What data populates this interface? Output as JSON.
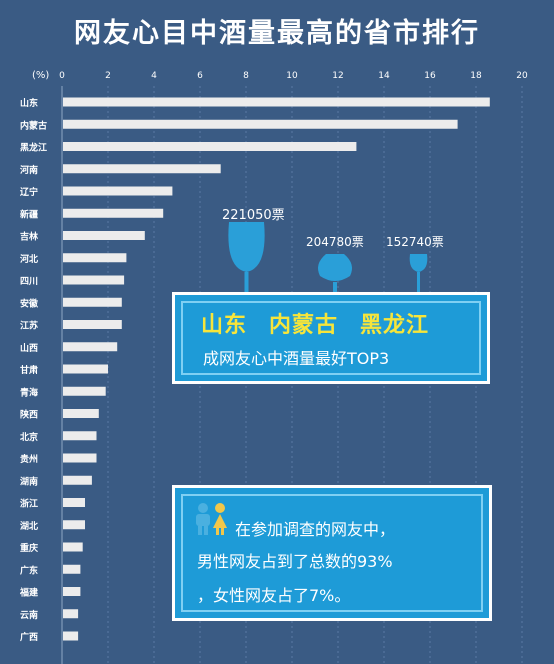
{
  "chart_data": {
    "type": "bar",
    "orientation": "horizontal",
    "title": "网友心目中酒量最高的省市排行",
    "unit_label": "(%)",
    "xlim": [
      0,
      20
    ],
    "ticks": [
      0,
      2,
      4,
      6,
      8,
      10,
      12,
      14,
      16,
      18,
      20
    ],
    "grid": true,
    "categories": [
      "山东",
      "内蒙古",
      "黑龙江",
      "河南",
      "辽宁",
      "新疆",
      "吉林",
      "河北",
      "四川",
      "安徽",
      "江苏",
      "山西",
      "甘肃",
      "青海",
      "陕西",
      "北京",
      "贵州",
      "湖南",
      "浙江",
      "湖北",
      "重庆",
      "广东",
      "福建",
      "云南",
      "广西"
    ],
    "values": [
      18.6,
      17.2,
      12.8,
      6.9,
      4.8,
      4.4,
      3.6,
      2.8,
      2.7,
      2.6,
      2.6,
      2.4,
      2.0,
      1.9,
      1.6,
      1.5,
      1.5,
      1.3,
      1.0,
      1.0,
      0.9,
      0.8,
      0.8,
      0.7,
      0.7
    ]
  },
  "votes": {
    "first": "221050票",
    "second": "204780票",
    "third": "152740票"
  },
  "top3": {
    "names": [
      "山东",
      "内蒙古",
      "黑龙江"
    ],
    "subtitle": "成网友心中酒量最好TOP3"
  },
  "survey": {
    "line1": "在参加调查的网友中，",
    "line2": "男性网友占到了总数的93%",
    "line3": "，女性网友占了7%。"
  },
  "colors": {
    "background": "#3a5b84",
    "bar": "#ececec",
    "callout": "#1e9bd7",
    "highlight": "#f7e53a",
    "glass": "#2a9fd8",
    "male": "#4ab0e0",
    "female": "#f2c74a"
  }
}
